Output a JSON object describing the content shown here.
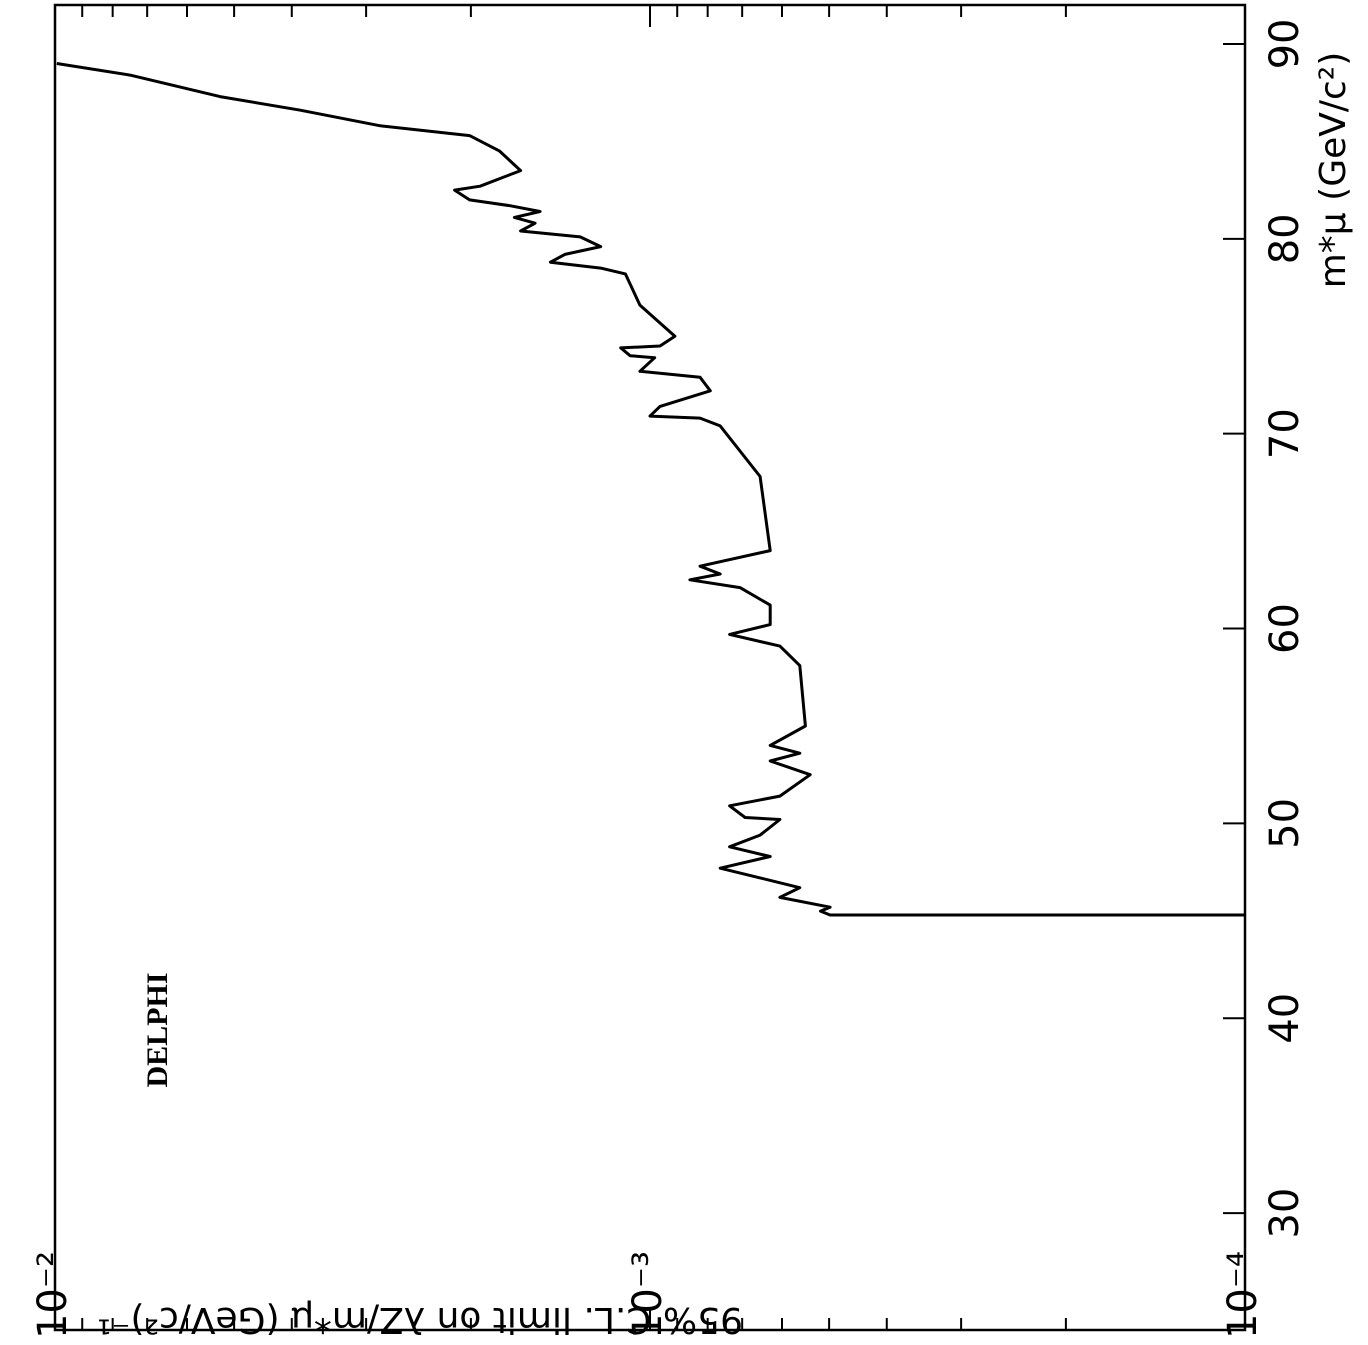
{
  "chart_data": {
    "type": "line",
    "annotation": "DELPHI",
    "x_label": "m*μ (GeV/c²)",
    "y_label": "95% C.L. limit on λZ/m*μ (GeV/c²)⁻¹",
    "xlim": [
      24,
      92
    ],
    "xticks": [
      30,
      40,
      50,
      60,
      70,
      80,
      90
    ],
    "ylim": [
      0.0001,
      0.01
    ],
    "log_y": true,
    "yticks": [
      {
        "value": 0.01,
        "label": "10⁻²"
      },
      {
        "value": 0.001,
        "label": "10⁻³"
      },
      {
        "value": 0.0001,
        "label": "10⁻⁴"
      }
    ],
    "yminor": [
      0.0002,
      0.0003,
      0.0004,
      0.0005,
      0.0006,
      0.0007,
      0.0008,
      0.0009,
      0.002,
      0.003,
      0.004,
      0.005,
      0.006,
      0.007,
      0.008,
      0.009
    ],
    "color": "#000000",
    "x": [
      89.0,
      88.4,
      87.3,
      86.6,
      85.8,
      85.3,
      84.5,
      83.5,
      82.7,
      82.5,
      82.0,
      81.7,
      81.4,
      81.1,
      80.8,
      80.4,
      80.1,
      79.6,
      79.2,
      78.8,
      78.5,
      78.2,
      76.6,
      75.0,
      74.5,
      74.4,
      74.0,
      73.9,
      73.2,
      72.9,
      72.2,
      71.4,
      70.9,
      70.8,
      70.4,
      67.8,
      64.0,
      63.2,
      62.8,
      62.5,
      62.1,
      61.2,
      60.2,
      59.7,
      59.1,
      58.1,
      55.0,
      54.0,
      53.6,
      53.2,
      52.5,
      51.4,
      50.9,
      50.3,
      50.2,
      49.4,
      48.8,
      48.3,
      47.7,
      47.2,
      46.7,
      46.2,
      45.7,
      45.5,
      45.3,
      45.3
    ],
    "values": [
      0.00993,
      0.00748,
      0.00528,
      0.00387,
      0.00284,
      0.00201,
      0.00179,
      0.00165,
      0.00193,
      0.00213,
      0.00201,
      0.00172,
      0.00153,
      0.00169,
      0.00156,
      0.00165,
      0.00131,
      0.00121,
      0.00139,
      0.00147,
      0.00121,
      0.0011,
      0.00104,
      0.000908,
      0.000962,
      0.00112,
      0.00108,
      0.000982,
      0.00104,
      0.000824,
      0.000792,
      0.000962,
      0.001,
      0.000824,
      0.000762,
      0.000653,
      0.000628,
      0.000824,
      0.000762,
      0.000857,
      0.000706,
      0.000628,
      0.000628,
      0.000735,
      0.000605,
      0.00056,
      0.000548,
      0.000628,
      0.00056,
      0.000628,
      0.000538,
      0.000605,
      0.000735,
      0.000692,
      0.000605,
      0.000653,
      0.000735,
      0.000628,
      0.000762,
      0.000653,
      0.00056,
      0.000605,
      0.000498,
      0.000517,
      0.000498,
      0.0001
    ]
  }
}
